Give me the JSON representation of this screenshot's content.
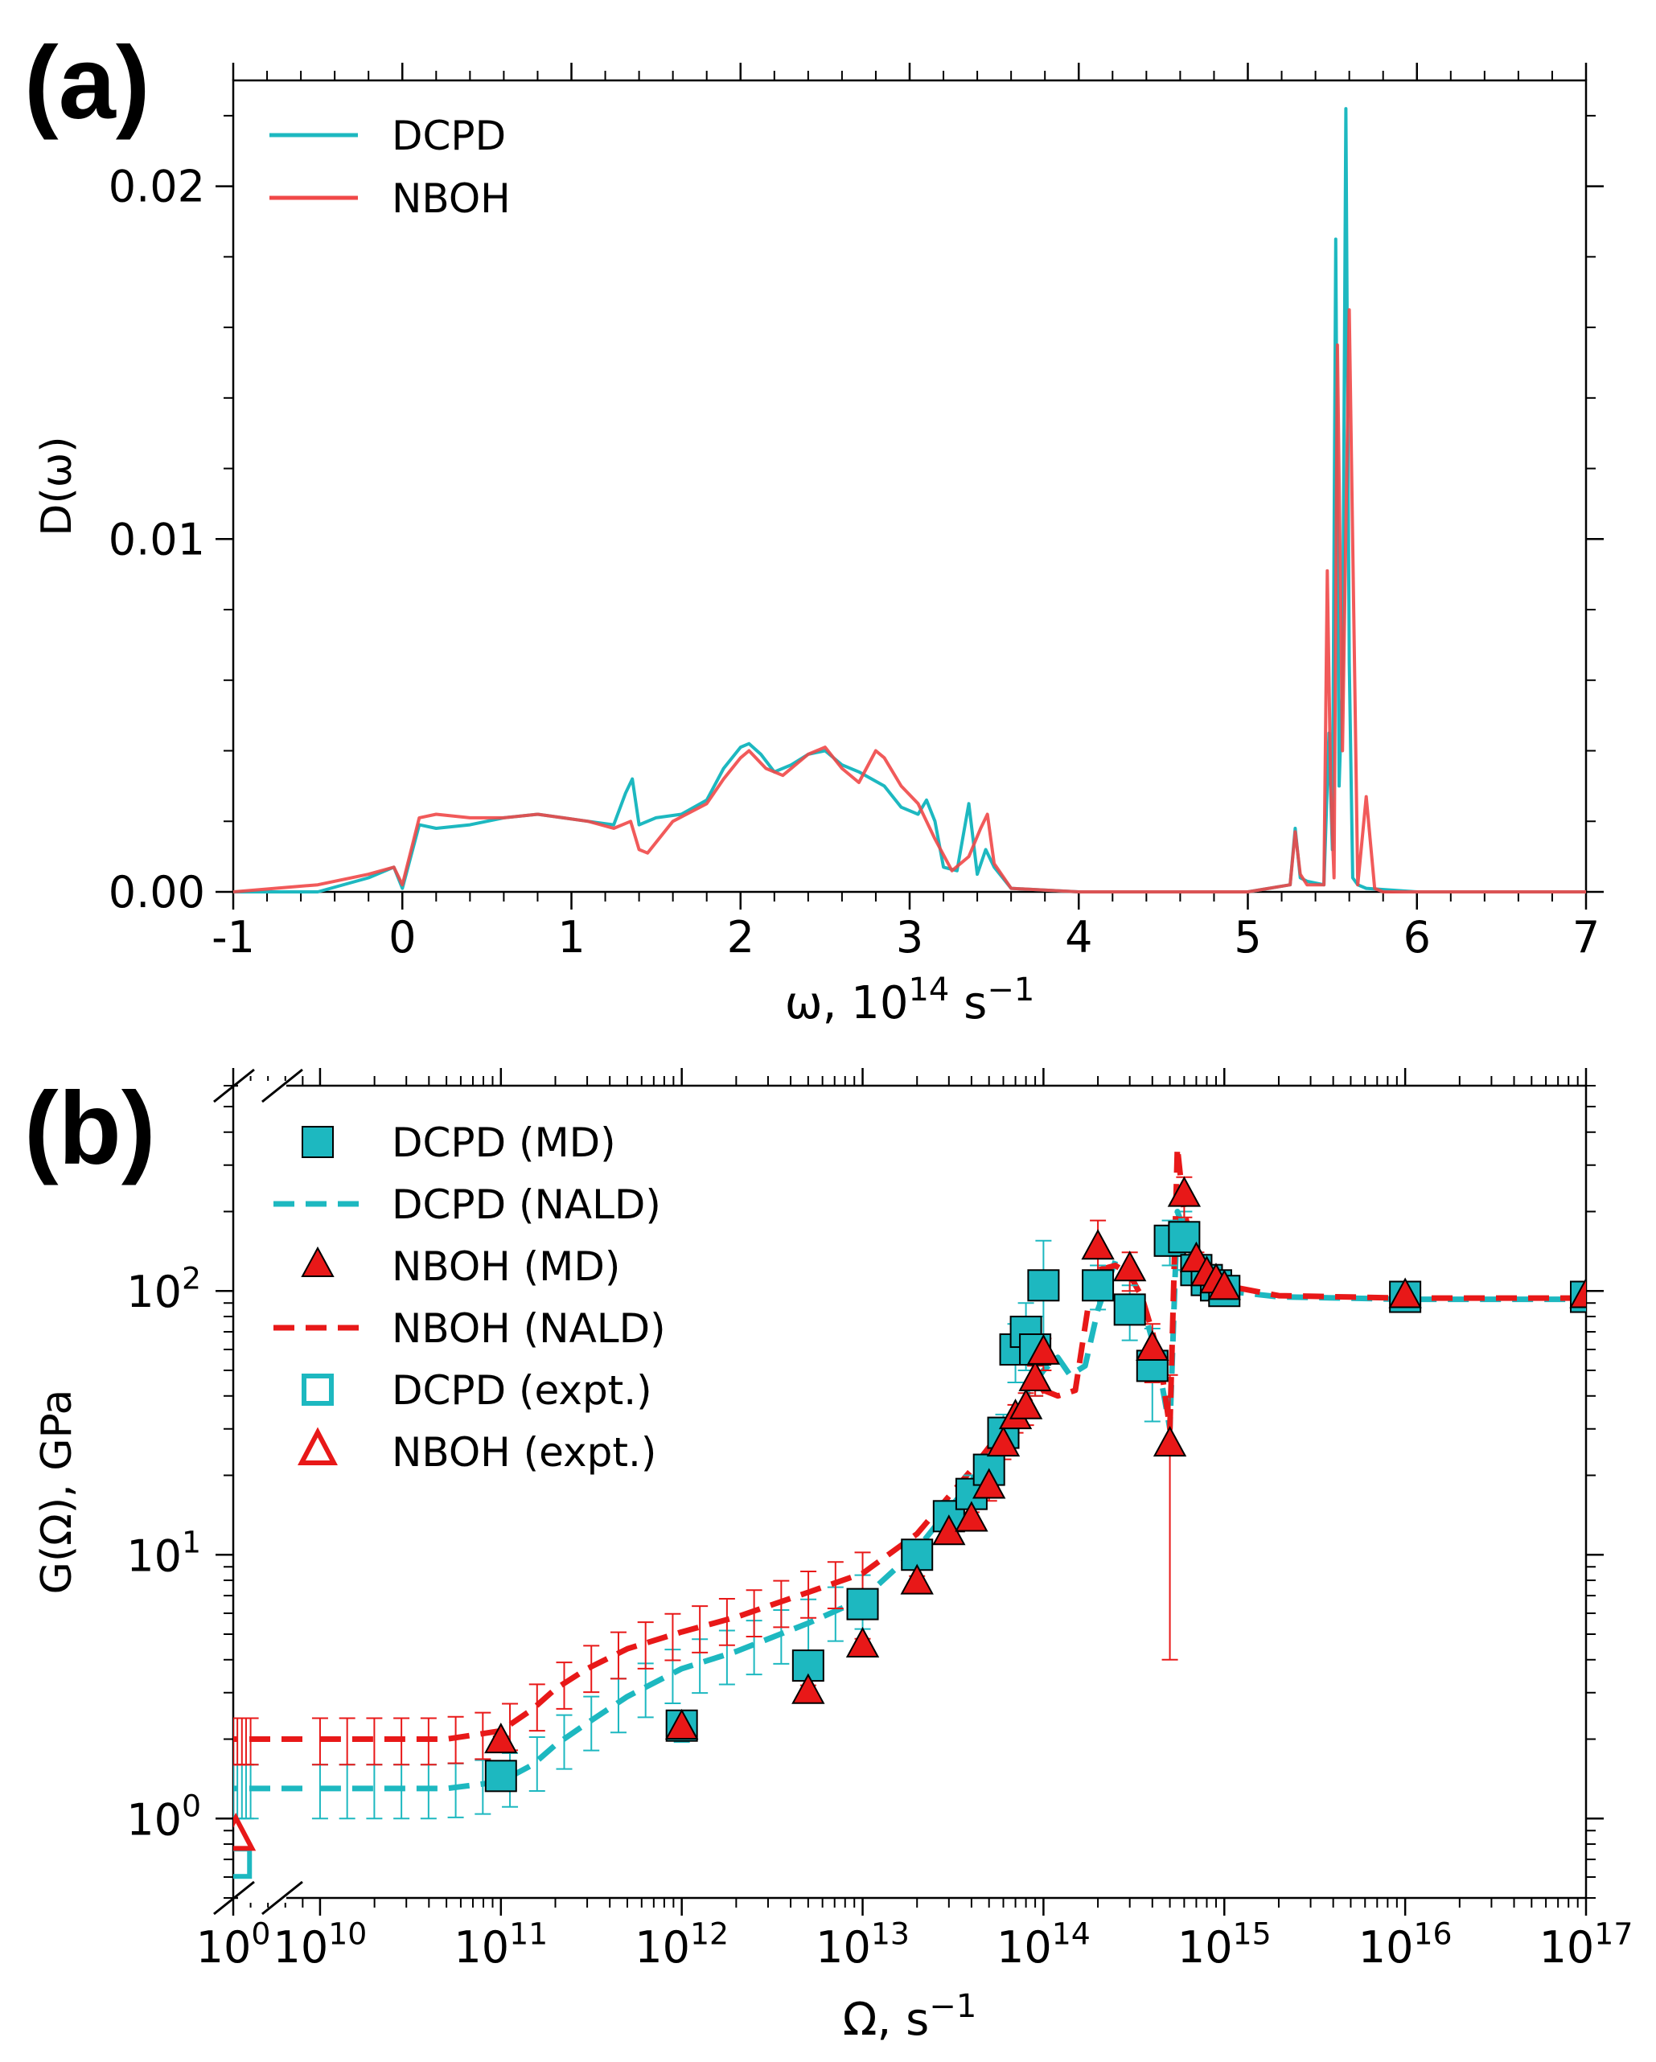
{
  "panels": {
    "a_label": "(a)",
    "b_label": "(b)"
  },
  "chart_data": [
    {
      "type": "line",
      "panel": "(a)",
      "title": "",
      "xlabel_main": "ω, 10",
      "xlabel_sup": "14",
      "xlabel_tail": " s",
      "xlabel_tail_sup": "−1",
      "ylabel": "D(ω)",
      "xlim": [
        -1,
        7
      ],
      "ylim": [
        0,
        0.023
      ],
      "xticks": [
        -1,
        0,
        1,
        2,
        3,
        4,
        5,
        6,
        7
      ],
      "xtick_labels": [
        "-1",
        "0",
        "1",
        "2",
        "3",
        "4",
        "5",
        "6",
        "7"
      ],
      "yticks": [
        0,
        0.01,
        0.02
      ],
      "ytick_labels": [
        "0.00",
        "0.01",
        "0.02"
      ],
      "legend_position": "top-left",
      "series": [
        {
          "name": "DCPD",
          "color": "#1db8c0",
          "x": [
            -1,
            -0.5,
            -0.2,
            -0.05,
            0,
            0.1,
            0.2,
            0.4,
            0.6,
            0.8,
            0.95,
            1.1,
            1.25,
            1.32,
            1.36,
            1.4,
            1.5,
            1.65,
            1.8,
            1.9,
            2.0,
            2.05,
            2.12,
            2.2,
            2.3,
            2.4,
            2.5,
            2.6,
            2.7,
            2.85,
            2.95,
            3.05,
            3.1,
            3.15,
            3.2,
            3.28,
            3.35,
            3.4,
            3.45,
            3.5,
            3.6,
            4.0,
            5.0,
            5.25,
            5.28,
            5.31,
            5.35,
            5.45,
            5.48,
            5.5,
            5.52,
            5.54,
            5.56,
            5.58,
            5.6,
            5.62,
            5.65,
            5.7,
            6.0,
            7.0
          ],
          "y": [
            0,
            0,
            0.0004,
            0.0007,
            0.0001,
            0.0019,
            0.0018,
            0.0019,
            0.0021,
            0.0022,
            0.0021,
            0.002,
            0.0019,
            0.0028,
            0.0032,
            0.0019,
            0.0021,
            0.0022,
            0.0026,
            0.0035,
            0.0041,
            0.0042,
            0.0039,
            0.0034,
            0.0036,
            0.0039,
            0.004,
            0.0036,
            0.0034,
            0.003,
            0.0024,
            0.0022,
            0.0026,
            0.002,
            0.0007,
            0.0006,
            0.0025,
            0.0005,
            0.0012,
            0.0007,
            0.0001,
            0,
            0,
            0.0002,
            0.0018,
            0.0004,
            0.0003,
            0.0002,
            0.0045,
            0.0012,
            0.0185,
            0.003,
            0.006,
            0.0222,
            0.0065,
            0.0004,
            0.0002,
            0.0001,
            0,
            0
          ]
        },
        {
          "name": "NBOH",
          "color": "#f04848",
          "x": [
            -1,
            -0.5,
            -0.2,
            -0.05,
            0,
            0.1,
            0.2,
            0.4,
            0.6,
            0.8,
            0.95,
            1.1,
            1.25,
            1.35,
            1.4,
            1.45,
            1.6,
            1.8,
            1.9,
            2.0,
            2.05,
            2.15,
            2.25,
            2.4,
            2.5,
            2.6,
            2.7,
            2.8,
            2.85,
            2.95,
            3.05,
            3.15,
            3.25,
            3.35,
            3.42,
            3.46,
            3.5,
            3.6,
            4.0,
            5.0,
            5.25,
            5.28,
            5.31,
            5.35,
            5.45,
            5.47,
            5.49,
            5.51,
            5.53,
            5.56,
            5.6,
            5.65,
            5.7,
            5.75,
            5.8,
            6.0,
            7.0
          ],
          "y": [
            0,
            0.0002,
            0.0005,
            0.0007,
            0.0002,
            0.0021,
            0.0022,
            0.0021,
            0.0021,
            0.0022,
            0.0021,
            0.002,
            0.0018,
            0.002,
            0.0012,
            0.0011,
            0.002,
            0.0025,
            0.0032,
            0.0038,
            0.004,
            0.0035,
            0.0033,
            0.0039,
            0.0041,
            0.0035,
            0.0031,
            0.004,
            0.0038,
            0.003,
            0.0025,
            0.0015,
            0.0006,
            0.001,
            0.0018,
            0.0022,
            0.0008,
            0.0001,
            0,
            0,
            0.0002,
            0.0017,
            0.0005,
            0.0002,
            0.0002,
            0.0091,
            0.003,
            0.0004,
            0.0155,
            0.004,
            0.0165,
            0.0002,
            0.0027,
            0.0001,
            0,
            0,
            0
          ]
        }
      ]
    },
    {
      "type": "scatter",
      "panel": "(b)",
      "title": "",
      "xlabel_main": "Ω, s",
      "xlabel_sup": "−1",
      "ylabel": "G(Ω), GPa",
      "xscale": "log (broken axis between 10^0 and 10^10)",
      "yscale": "log",
      "xlim": [
        1,
        1e+17
      ],
      "ylim": [
        0.5,
        600
      ],
      "xtick_labels": [
        {
          "base": "10",
          "exp": "0"
        },
        {
          "base": "10",
          "exp": "10"
        },
        {
          "base": "10",
          "exp": "11"
        },
        {
          "base": "10",
          "exp": "12"
        },
        {
          "base": "10",
          "exp": "13"
        },
        {
          "base": "10",
          "exp": "14"
        },
        {
          "base": "10",
          "exp": "15"
        },
        {
          "base": "10",
          "exp": "16"
        },
        {
          "base": "10",
          "exp": "17"
        }
      ],
      "ytick_labels": [
        {
          "value": 1,
          "base": "10",
          "exp": "0"
        },
        {
          "value": 10,
          "base": "10",
          "exp": "1"
        },
        {
          "value": 100,
          "base": "10",
          "exp": "2"
        }
      ],
      "legend_position": "top-left",
      "legend": [
        {
          "label": "DCPD (MD)",
          "marker": "filled-square",
          "color": "#1db8c0"
        },
        {
          "label": "DCPD (NALD)",
          "marker": "dashed-line",
          "color": "#1db8c0"
        },
        {
          "label": "NBOH (MD)",
          "marker": "filled-triangle",
          "color": "#e81818"
        },
        {
          "label": "NBOH (NALD)",
          "marker": "dashed-line",
          "color": "#e81818"
        },
        {
          "label": "DCPD (expt.)",
          "marker": "open-square",
          "color": "#1db8c0"
        },
        {
          "label": "NBOH (expt.)",
          "marker": "open-triangle",
          "color": "#e81818"
        }
      ],
      "series": [
        {
          "name": "DCPD (NALD)",
          "color": "#1db8c0",
          "style": "dashed",
          "x": [
            1,
            5,
            10000000000.0,
            50000000000.0,
            100000000000.0,
            150000000000.0,
            200000000000.0,
            300000000000.0,
            500000000000.0,
            1000000000000.0,
            2000000000000.0,
            5000000000000.0,
            10000000000000.0,
            20000000000000.0,
            40000000000000.0,
            60000000000000.0,
            80000000000000.0,
            100000000000000.0,
            120000000000000.0,
            140000000000000.0,
            170000000000000.0,
            200000000000000.0,
            250000000000000.0,
            300000000000000.0,
            350000000000000.0,
            400000000000000.0,
            450000000000000.0,
            500000000000000.0,
            550000000000000.0,
            600000000000000.0,
            700000000000000.0,
            1000000000000000.0,
            2000000000000000.0,
            1e+16,
            1e+17
          ],
          "y": [
            1.3,
            1.3,
            1.3,
            1.3,
            1.38,
            1.6,
            1.9,
            2.3,
            2.9,
            3.7,
            4.3,
            5.5,
            6.8,
            10.5,
            19,
            28,
            40,
            50,
            56,
            48,
            52,
            85,
            130,
            120,
            90,
            65,
            45,
            30,
            200,
            170,
            120,
            100,
            95,
            93,
            93
          ],
          "yerr": 0.3
        },
        {
          "name": "NBOH (NALD)",
          "color": "#e81818",
          "style": "dashed",
          "x": [
            1,
            5,
            10000000000.0,
            50000000000.0,
            100000000000.0,
            150000000000.0,
            200000000000.0,
            300000000000.0,
            500000000000.0,
            1000000000000.0,
            2000000000000.0,
            5000000000000.0,
            10000000000000.0,
            20000000000000.0,
            40000000000000.0,
            60000000000000.0,
            80000000000000.0,
            100000000000000.0,
            120000000000000.0,
            150000000000000.0,
            180000000000000.0,
            200000000000000.0,
            250000000000000.0,
            300000000000000.0,
            350000000000000.0,
            400000000000000.0,
            450000000000000.0,
            500000000000000.0,
            550000000000000.0,
            600000000000000.0,
            700000000000000.0,
            1000000000000000.0,
            2000000000000000.0,
            1e+16,
            1e+17
          ],
          "y": [
            2.0,
            2.0,
            2.0,
            2.0,
            2.15,
            2.6,
            3.1,
            3.7,
            4.4,
            5.1,
            5.8,
            7.2,
            8.5,
            12,
            21,
            30,
            38,
            42,
            40,
            42,
            95,
            120,
            125,
            115,
            95,
            70,
            50,
            30,
            350,
            200,
            130,
            105,
            96,
            94,
            94
          ],
          "yerr": 0.4
        },
        {
          "name": "DCPD (MD)",
          "color": "#1db8c0",
          "marker": "square",
          "x": [
            100000000000.0,
            1000000000000.0,
            5000000000000.0,
            10000000000000.0,
            20000000000000.0,
            30000000000000.0,
            40000000000000.0,
            50000000000000.0,
            60000000000000.0,
            70000000000000.0,
            80000000000000.0,
            90000000000000.0,
            100000000000000.0,
            200000000000000.0,
            300000000000000.0,
            400000000000000.0,
            500000000000000.0,
            600000000000000.0,
            700000000000000.0,
            800000000000000.0,
            900000000000000.0,
            1000000000000000.0,
            1e+16,
            1e+17
          ],
          "y": [
            1.45,
            2.25,
            3.8,
            6.5,
            10,
            14,
            17,
            21,
            29,
            60,
            70,
            60,
            105,
            105,
            85,
            52,
            155,
            160,
            120,
            110,
            105,
            100,
            95,
            95
          ],
          "yerr": [
            0.05,
            0.3,
            0.1,
            0.5,
            1,
            2,
            3,
            3,
            5,
            15,
            20,
            20,
            50,
            20,
            20,
            20,
            30,
            40,
            10,
            5,
            5,
            5,
            2,
            2
          ]
        },
        {
          "name": "NBOH (MD)",
          "color": "#e81818",
          "marker": "triangle",
          "x": [
            100000000000.0,
            1000000000000.0,
            5000000000000.0,
            10000000000000.0,
            20000000000000.0,
            30000000000000.0,
            40000000000000.0,
            50000000000000.0,
            60000000000000.0,
            70000000000000.0,
            80000000000000.0,
            90000000000000.0,
            100000000000000.0,
            200000000000000.0,
            300000000000000.0,
            400000000000000.0,
            500000000000000.0,
            600000000000000.0,
            700000000000000.0,
            800000000000000.0,
            900000000000000.0,
            1000000000000000.0,
            1e+16,
            1e+17
          ],
          "y": [
            1.95,
            2.2,
            3.0,
            4.5,
            7.8,
            12,
            13.5,
            18,
            26,
            33,
            36,
            46,
            58,
            145,
            120,
            60,
            26,
            230,
            130,
            115,
            108,
            102,
            95,
            95
          ],
          "yerr": [
            0.1,
            0.2,
            0.2,
            0.3,
            0.5,
            1,
            1,
            2,
            3,
            4,
            5,
            6,
            8,
            40,
            20,
            15,
            22,
            40,
            10,
            5,
            5,
            5,
            2,
            2
          ]
        },
        {
          "name": "DCPD (expt.)",
          "color": "#1db8c0",
          "marker": "open-square",
          "x": [
            2
          ],
          "y": [
            0.68
          ]
        },
        {
          "name": "NBOH (expt.)",
          "color": "#e81818",
          "marker": "open-triangle",
          "x": [
            2
          ],
          "y": [
            0.85
          ]
        }
      ]
    }
  ]
}
